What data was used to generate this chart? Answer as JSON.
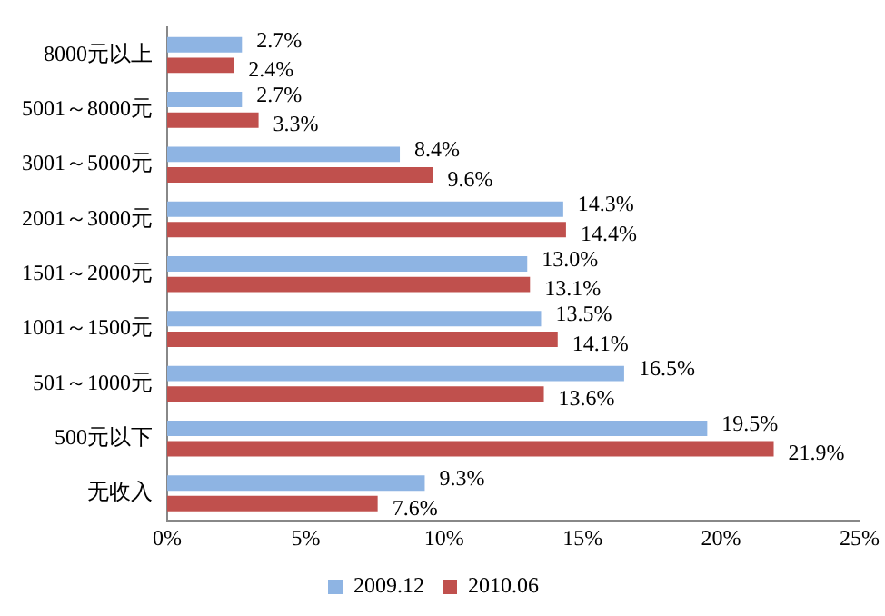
{
  "chart_data": {
    "type": "bar",
    "orientation": "horizontal",
    "categories": [
      "8000元以上",
      "5001～8000元",
      "3001～5000元",
      "2001～3000元",
      "1501～2000元",
      "1001～1500元",
      "501～1000元",
      "500元以下",
      "无收入"
    ],
    "series": [
      {
        "name": "2009.12",
        "color": "#8eb4e3",
        "values": [
          2.7,
          2.7,
          8.4,
          14.3,
          13.0,
          13.5,
          16.5,
          19.5,
          9.3
        ],
        "value_labels": [
          "2.7%",
          "2.7%",
          "8.4%",
          "14.3%",
          "13.0%",
          "13.5%",
          "16.5%",
          "19.5%",
          "9.3%"
        ]
      },
      {
        "name": "2010.06",
        "color": "#c0504d",
        "values": [
          2.4,
          3.3,
          9.6,
          14.4,
          13.1,
          14.1,
          13.6,
          21.9,
          7.6
        ],
        "value_labels": [
          "2.4%",
          "3.3%",
          "9.6%",
          "14.4%",
          "13.1%",
          "14.1%",
          "13.6%",
          "21.9%",
          "7.6%"
        ]
      }
    ],
    "xlim": [
      0,
      25
    ],
    "xticks": [
      {
        "value": 0,
        "label": "0%"
      },
      {
        "value": 5,
        "label": "5%"
      },
      {
        "value": 10,
        "label": "10%"
      },
      {
        "value": 15,
        "label": "15%"
      },
      {
        "value": 20,
        "label": "20%"
      },
      {
        "value": 25,
        "label": "25%"
      }
    ],
    "grid": false,
    "legend": "bottom"
  }
}
